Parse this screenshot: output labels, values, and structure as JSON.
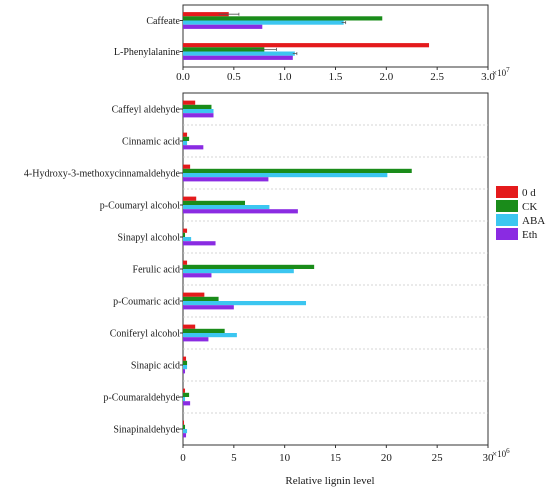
{
  "colors": {
    "0 d": "#e41a1c",
    "CK": "#1a8c1a",
    "ABA": "#3cc6f0",
    "Eth": "#8a2be2",
    "axis": "#333333",
    "divider": "#c8c8c8"
  },
  "legend": {
    "position": "right",
    "items": [
      "0 d",
      "CK",
      "ABA",
      "Eth"
    ]
  },
  "chart_data": [
    {
      "type": "bar",
      "orientation": "horizontal",
      "categories": [
        "Caffeate",
        "L-Phenylalanine"
      ],
      "series": [
        {
          "name": "0 d",
          "values": [
            0.45,
            2.42
          ],
          "errors": [
            0.1,
            0
          ]
        },
        {
          "name": "CK",
          "values": [
            1.96,
            0.8
          ],
          "errors": [
            0,
            0.12
          ]
        },
        {
          "name": "ABA",
          "values": [
            1.58,
            1.1
          ],
          "errors": [
            0.02,
            0.02
          ]
        },
        {
          "name": "Eth",
          "values": [
            0.78,
            1.08
          ],
          "errors": [
            0,
            0
          ]
        }
      ],
      "xlim": [
        0,
        3.0
      ],
      "xticks": [
        "0.0",
        "0.5",
        "1.0",
        "1.5",
        "2.0",
        "2.5",
        "3.0"
      ],
      "x_multiplier": "×10",
      "x_multiplier_exp": "7",
      "xlabel": "",
      "grid": false
    },
    {
      "type": "bar",
      "orientation": "horizontal",
      "categories": [
        "Caffeyl aldehyde",
        "Cinnamic acid",
        "4-Hydroxy-3-methoxycinnamaldehyde",
        "p-Coumaryl alcohol",
        "Sinapyl alcohol",
        "Ferulic acid",
        "p-Coumaric acid",
        "Coniferyl alcohol",
        "Sinapic acid",
        "p-Coumaraldehyde",
        "Sinapinaldehyde"
      ],
      "series": [
        {
          "name": "0 d",
          "values": [
            1.2,
            0.4,
            0.7,
            1.3,
            0.4,
            0.4,
            2.1,
            1.2,
            0.3,
            0.2,
            0.1
          ]
        },
        {
          "name": "CK",
          "values": [
            2.8,
            0.6,
            22.5,
            6.1,
            0.2,
            12.9,
            3.5,
            4.1,
            0.4,
            0.6,
            0.2
          ]
        },
        {
          "name": "ABA",
          "values": [
            3.0,
            0.4,
            20.1,
            8.5,
            0.8,
            10.9,
            12.1,
            5.3,
            0.4,
            0.2,
            0.4
          ]
        },
        {
          "name": "Eth",
          "values": [
            3.0,
            2.0,
            8.4,
            11.3,
            3.2,
            2.8,
            5.0,
            2.5,
            0.2,
            0.7,
            0.3
          ]
        }
      ],
      "xlim": [
        0,
        30
      ],
      "xticks": [
        "0",
        "5",
        "10",
        "15",
        "20",
        "25",
        "30"
      ],
      "x_multiplier": "×10",
      "x_multiplier_exp": "6",
      "xlabel": "Relative lignin level",
      "grid": false
    }
  ]
}
